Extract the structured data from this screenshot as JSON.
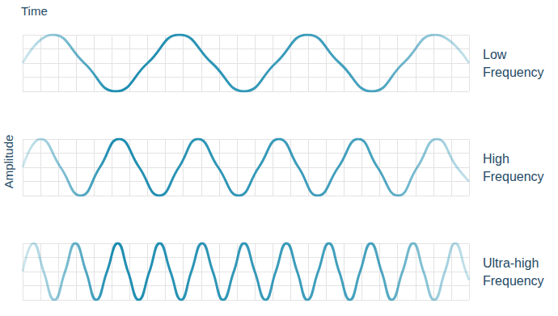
{
  "chart_data": {
    "type": "line",
    "x_label": "Time",
    "y_label": "Amplitude",
    "xlim": [
      0,
      100
    ],
    "ylim": [
      -1,
      1
    ],
    "xticks": [
      0,
      4,
      8,
      12,
      16,
      20,
      24,
      28,
      32,
      36,
      40,
      44,
      48,
      52,
      56,
      60,
      64,
      68,
      72,
      76,
      80,
      84,
      88,
      92,
      96,
      100
    ],
    "yticks": [
      -1,
      -0.5,
      0,
      0.5,
      1
    ],
    "grid": true,
    "tick_labels": false,
    "series": [
      {
        "name": "Low Frequency",
        "color": "#1d8db0",
        "x": [
          0,
          6.7,
          13.8,
          20.8,
          28.0,
          35.1,
          42.4,
          49.6,
          56.7,
          63.8,
          71.0,
          78.3,
          85.3,
          92.4,
          100
        ],
        "values": [
          0,
          1,
          0,
          -1,
          0,
          1,
          0,
          -1,
          0,
          1,
          0,
          -1,
          0,
          1,
          0
        ]
      },
      {
        "name": "High Frequency",
        "color": "#1d8db0",
        "x": [
          0,
          4.0,
          8.5,
          13.0,
          17.3,
          21.6,
          26.1,
          30.6,
          35.0,
          39.3,
          43.8,
          48.4,
          52.9,
          57.4,
          61.8,
          66.1,
          70.7,
          75.2,
          79.5,
          84.1,
          88.4,
          92.8,
          97.3,
          100
        ],
        "values": [
          0,
          1,
          0,
          -1,
          0,
          1,
          0,
          -1,
          0,
          1,
          0,
          -1,
          0,
          1,
          0,
          -1,
          0,
          1,
          0,
          -1,
          0,
          1,
          0,
          -0.5
        ]
      },
      {
        "name": "Ultra-high Frequency",
        "color": "#1d8db0",
        "x": [
          0,
          2.4,
          4.7,
          7.1,
          9.5,
          11.8,
          14.2,
          16.5,
          18.9,
          21.3,
          23.6,
          26.0,
          28.4,
          30.7,
          33.1,
          35.5,
          37.8,
          40.2,
          42.6,
          44.9,
          47.3,
          49.6,
          52.0,
          54.4,
          56.7,
          59.1,
          61.5,
          63.8,
          66.2,
          68.6,
          70.9,
          73.3,
          75.6,
          78.0,
          80.4,
          82.7,
          85.1,
          87.5,
          89.8,
          92.2,
          94.6,
          96.9,
          99.3,
          100
        ],
        "values": [
          0,
          1,
          0,
          -1,
          0,
          1,
          0,
          -1,
          0,
          1,
          0,
          -1,
          0,
          1,
          0,
          -1,
          0,
          1,
          0,
          -1,
          0,
          1,
          0,
          -1,
          0,
          1,
          0,
          -1,
          0,
          1,
          0,
          -1,
          0,
          1,
          0,
          -1,
          0,
          1,
          0,
          -1,
          0,
          1,
          0,
          -0.3
        ]
      }
    ]
  }
}
